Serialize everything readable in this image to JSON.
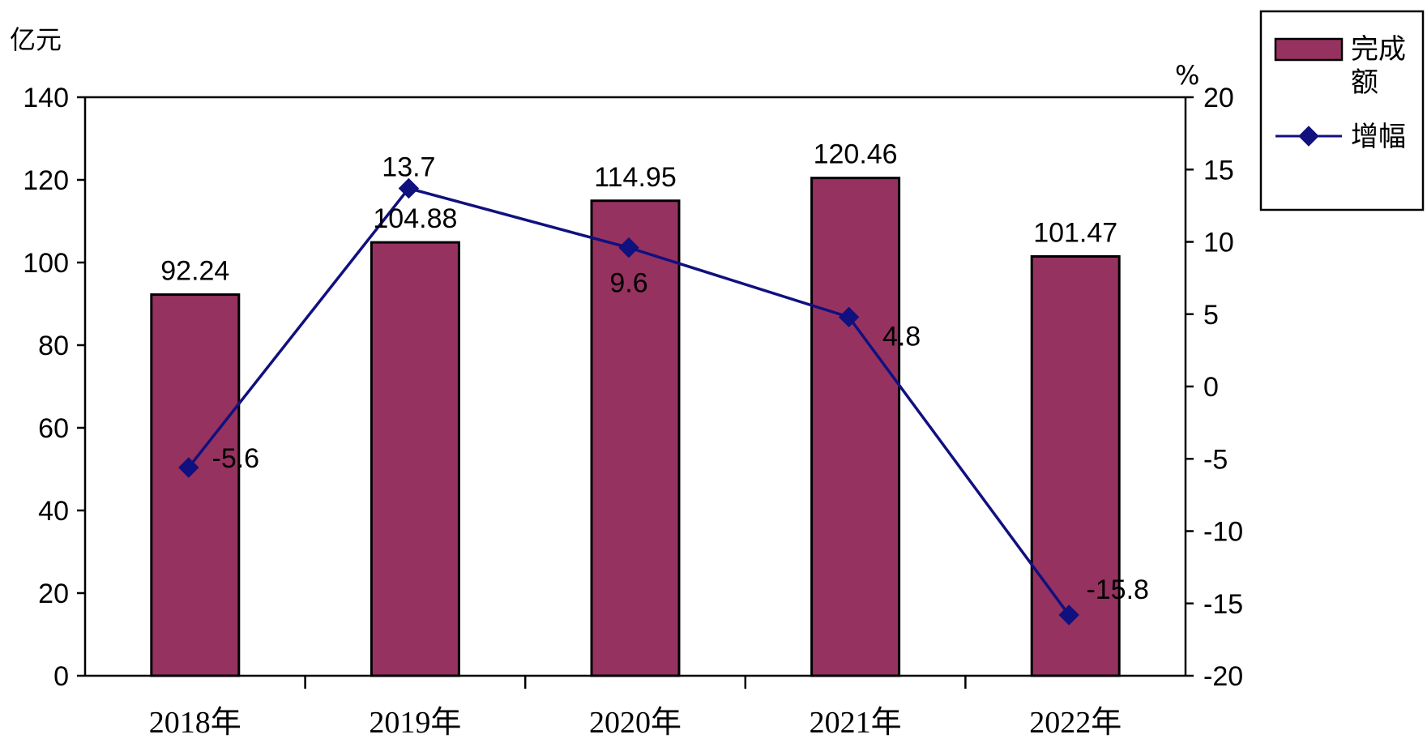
{
  "chart_data": {
    "type": "bar",
    "categories": [
      "2018年",
      "2019年",
      "2020年",
      "2021年",
      "2022年"
    ],
    "series": [
      {
        "name": "完成额",
        "type": "bar",
        "axis": "left",
        "values": [
          92.24,
          104.88,
          114.95,
          120.46,
          101.47
        ],
        "labels": [
          "92.24",
          "104.88",
          "114.95",
          "120.46",
          "101.47"
        ]
      },
      {
        "name": "增幅",
        "type": "line",
        "axis": "right",
        "values": [
          -5.6,
          13.7,
          9.6,
          4.8,
          -15.8
        ],
        "labels": [
          "-5.6",
          "13.7",
          "9.6",
          "4.8",
          "-15.8"
        ]
      }
    ],
    "left_axis": {
      "unit": "亿元",
      "ylim": [
        0,
        140
      ],
      "ticks": [
        0,
        20,
        40,
        60,
        80,
        100,
        120,
        140
      ]
    },
    "right_axis": {
      "unit": "%",
      "ylim": [
        -20,
        20
      ],
      "ticks": [
        -20,
        -15,
        -10,
        -5,
        0,
        5,
        10,
        15,
        20
      ]
    },
    "legend": {
      "position": "top-right",
      "bar_label_line1": "完成",
      "bar_label_line2": "额"
    },
    "grid": false,
    "colors": {
      "bar": "#963260",
      "bar_stroke": "#000000",
      "line": "#10107f",
      "axis": "#000000"
    }
  }
}
